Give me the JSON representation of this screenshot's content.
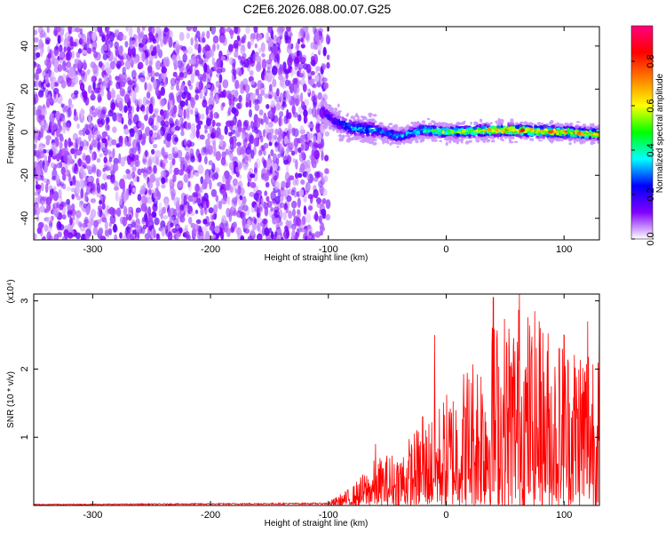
{
  "title": "C2E6.2026.088.00.07.G25",
  "chart_data": [
    {
      "type": "heatmap",
      "xlabel": "Height of straight line (km)",
      "ylabel": "Frequency (Hz)",
      "xlim": [
        -350,
        130
      ],
      "ylim": [
        -50,
        49
      ],
      "xticks": [
        -300,
        -200,
        -100,
        0,
        100
      ],
      "yticks": [
        -40,
        -20,
        0,
        20,
        40
      ],
      "xtick_labels": [
        "-300",
        "-200",
        "-100",
        "0",
        "100"
      ],
      "ytick_labels": [
        "-40",
        "-20",
        "0",
        "20",
        "40"
      ],
      "colorbar": {
        "label": "Normalized spectral amplitude",
        "range": [
          0,
          0.96
        ],
        "ticks": [
          0,
          0.2,
          0.4,
          0.6,
          0.8
        ],
        "tick_labels": [
          "0.0",
          "0.2",
          "0.4",
          "0.6",
          "0.8"
        ],
        "colormap": [
          "#ffffff",
          "#8000ff",
          "#0000ff",
          "#00ffff",
          "#00ff00",
          "#ffff00",
          "#ff8000",
          "#ff0000",
          "#ff0080"
        ]
      },
      "noise_region": {
        "x_range": [
          -350,
          -100
        ],
        "freq_range": [
          -50,
          49
        ],
        "typical_amplitude": 0.1
      },
      "signal_band": {
        "x_range": [
          -105,
          130
        ],
        "center_freq": [
          [
            -105,
            10
          ],
          [
            -95,
            5
          ],
          [
            -80,
            2
          ],
          [
            -60,
            1
          ],
          [
            -40,
            -2
          ],
          [
            -20,
            1
          ],
          [
            0,
            0
          ],
          [
            50,
            1
          ],
          [
            100,
            0
          ],
          [
            130,
            -1
          ]
        ],
        "peak_amplitude": [
          [
            -100,
            0.2
          ],
          [
            -80,
            0.35
          ],
          [
            -40,
            0.4
          ],
          [
            0,
            0.6
          ],
          [
            50,
            0.9
          ],
          [
            100,
            0.85
          ],
          [
            130,
            0.8
          ]
        ]
      },
      "grid": false
    },
    {
      "type": "line",
      "xlabel": "Height of straight line (km)",
      "ylabel": "SNR (10 * v/v)",
      "yscale_note": "(x10⁴)",
      "xlim": [
        -350,
        130
      ],
      "ylim": [
        0,
        3.1
      ],
      "xticks": [
        -300,
        -200,
        -100,
        0,
        100
      ],
      "yticks": [
        1,
        2,
        3
      ],
      "xtick_labels": [
        "-300",
        "-200",
        "-100",
        "0",
        "100"
      ],
      "ytick_labels": [
        "1",
        "2",
        "3"
      ],
      "color": "#ff0000",
      "envelope": [
        [
          -350,
          0.02
        ],
        [
          -100,
          0.04
        ],
        [
          -80,
          0.2
        ],
        [
          -60,
          0.5
        ],
        [
          -40,
          0.6
        ],
        [
          -20,
          0.9
        ],
        [
          0,
          1.2
        ],
        [
          20,
          1.6
        ],
        [
          40,
          2.0
        ],
        [
          60,
          2.2
        ],
        [
          80,
          2.0
        ],
        [
          100,
          1.8
        ],
        [
          130,
          2.0
        ]
      ],
      "peaks": [
        [
          -60,
          0.9
        ],
        [
          -20,
          1.3
        ],
        [
          -10,
          2.5
        ],
        [
          40,
          3.05
        ],
        [
          62,
          3.1
        ],
        [
          80,
          2.6
        ],
        [
          100,
          2.5
        ],
        [
          120,
          2.7
        ]
      ],
      "grid": false
    }
  ]
}
